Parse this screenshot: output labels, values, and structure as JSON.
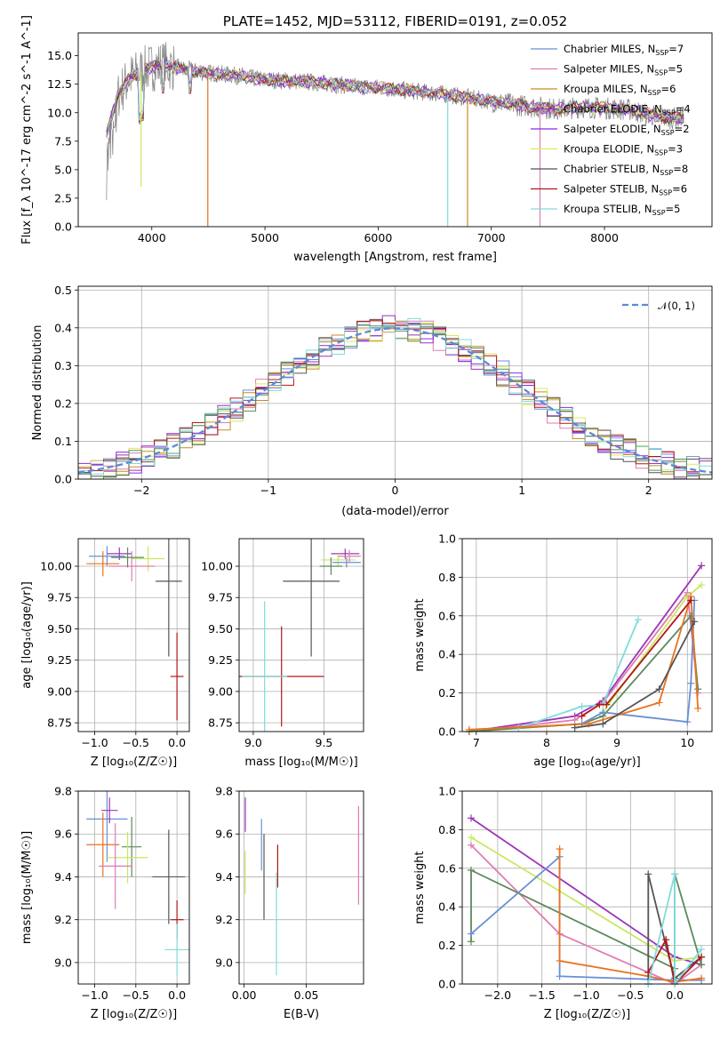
{
  "page": {
    "title": "PLATE=1452, MJD=53112, FIBERID=0191, z=0.052"
  },
  "colors": {
    "Chabrier MILES": "#6b8fd6",
    "Salpeter MILES": "#e07bb3",
    "Kroupa MILES": "#c98a2b",
    "Chabrier ELODIE": "#9b35b8",
    "Salpeter ELODIE": "#8a2be2",
    "Kroupa ELODIE": "#d9ea5a",
    "Chabrier STELIB": "#555555",
    "Salpeter STELIB": "#b01818",
    "Kroupa STELIB": "#7fdcdc",
    "data": "#808080",
    "normal": "#5b8ad6",
    "orange": "#e8731e",
    "green": "#5c8a5c",
    "lime": "#c8e860"
  },
  "chart_data": [
    {
      "id": "spectrum",
      "type": "line",
      "title": "PLATE=1452, MJD=53112, FIBERID=0191, z=0.052",
      "xlabel": "wavelength [Angstrom, rest frame]",
      "ylabel": "Flux [f_λ 10^-17 erg cm^-2 s^-1 A^-1]",
      "xlim": [
        3350,
        8950
      ],
      "ylim": [
        0,
        17
      ],
      "xticks": [
        "4000",
        "5000",
        "6000",
        "7000",
        "8000"
      ],
      "xtick_values": [
        4000,
        5000,
        6000,
        7000,
        8000
      ],
      "yticks": [
        "0.0",
        "2.5",
        "5.0",
        "7.5",
        "10.0",
        "12.5",
        "15.0"
      ],
      "ytick_values": [
        0,
        2.5,
        5,
        7.5,
        10,
        12.5,
        15
      ],
      "legend": [
        {
          "label": "Chabrier MILES, N",
          "sub": "SSP",
          "tail": "=7",
          "color": "#6b8fd6"
        },
        {
          "label": "Salpeter MILES, N",
          "sub": "SSP",
          "tail": "=5",
          "color": "#e07bb3"
        },
        {
          "label": "Kroupa MILES, N",
          "sub": "SSP",
          "tail": "=6",
          "color": "#c98a2b"
        },
        {
          "label": "Chabrier ELODIE, N",
          "sub": "SSP",
          "tail": "=4",
          "color": "#9b35b8"
        },
        {
          "label": "Salpeter ELODIE, N",
          "sub": "SSP",
          "tail": "=2",
          "color": "#8a2be2"
        },
        {
          "label": "Kroupa ELODIE, N",
          "sub": "SSP",
          "tail": "=3",
          "color": "#d9ea5a"
        },
        {
          "label": "Chabrier STELIB, N",
          "sub": "SSP",
          "tail": "=8",
          "color": "#555555"
        },
        {
          "label": "Salpeter STELIB, N",
          "sub": "SSP",
          "tail": "=6",
          "color": "#b01818"
        },
        {
          "label": "Kroupa STELIB, N",
          "sub": "SSP",
          "tail": "=5",
          "color": "#7fdcdc"
        }
      ],
      "continuum": {
        "x": [
          3600,
          3700,
          3800,
          3900,
          4000,
          4100,
          4200,
          4300,
          4400,
          4500,
          4600,
          4700,
          4800,
          4900,
          5000,
          5200,
          5400,
          5600,
          5800,
          6000,
          6200,
          6400,
          6600,
          6800,
          7000,
          7200,
          7400,
          7600,
          7800,
          8000,
          8200,
          8400,
          8600,
          8700
        ],
        "y": [
          8.2,
          11.5,
          13.0,
          13.6,
          14.0,
          14.2,
          14.0,
          13.8,
          13.6,
          13.5,
          13.4,
          13.3,
          13.2,
          13.0,
          12.9,
          12.8,
          12.7,
          12.5,
          12.3,
          12.2,
          12.0,
          11.8,
          11.6,
          11.3,
          11.0,
          10.7,
          10.5,
          10.3,
          10.5,
          10.4,
          10.3,
          9.8,
          9.5,
          9.6
        ]
      },
      "drops": [
        {
          "x": 3905,
          "y": 3.5
        },
        {
          "x": 4495,
          "y": 0.0
        },
        {
          "x": 6615,
          "y": 0.0
        },
        {
          "x": 6790,
          "y": 0.0
        },
        {
          "x": 7430,
          "y": 0.0
        }
      ]
    },
    {
      "id": "residuals",
      "type": "area",
      "xlabel": "(data-model)/error",
      "ylabel": "Normed distribution",
      "xlim": [
        -2.5,
        2.5
      ],
      "ylim": [
        0,
        0.51
      ],
      "xticks": [
        "−2",
        "−1",
        "0",
        "1",
        "2"
      ],
      "xtick_values": [
        -2,
        -1,
        0,
        1,
        2
      ],
      "yticks": [
        "0.0",
        "0.1",
        "0.2",
        "0.3",
        "0.4",
        "0.5"
      ],
      "ytick_values": [
        0,
        0.1,
        0.2,
        0.3,
        0.4,
        0.5
      ],
      "grid": true,
      "legend": [
        {
          "label": "𝒩(0, 1)",
          "color": "#5b8ad6"
        }
      ],
      "bin_width": 0.1
    },
    {
      "id": "age-vs-Z",
      "type": "scatter",
      "xlabel": "Z [log₁₀(Z/Z☉)]",
      "ylabel": "age  [log₁₀(age/yr)]",
      "xlim": [
        -1.2,
        0.15
      ],
      "ylim": [
        8.68,
        10.22
      ],
      "xticks": [
        "−1.0",
        "−0.5",
        "0.0"
      ],
      "xtick_values": [
        -1.0,
        -0.5,
        0.0
      ],
      "yticks": [
        "8.75",
        "9.00",
        "9.25",
        "9.50",
        "9.75",
        "10.00"
      ],
      "ytick_values": [
        8.75,
        9.0,
        9.25,
        9.5,
        9.75,
        10.0
      ],
      "points": [
        {
          "x": -0.85,
          "y": 10.08,
          "xerr": 0.22,
          "yerr": 0.08,
          "color": "#6b8fd6"
        },
        {
          "x": -0.9,
          "y": 10.02,
          "xerr": 0.2,
          "yerr": 0.1,
          "color": "#e8731e"
        },
        {
          "x": -0.7,
          "y": 10.1,
          "xerr": 0.15,
          "yerr": 0.05,
          "color": "#9b35b8"
        },
        {
          "x": -0.35,
          "y": 10.06,
          "xerr": 0.2,
          "yerr": 0.1,
          "color": "#c8e860"
        },
        {
          "x": -0.55,
          "y": 10.0,
          "xerr": 0.28,
          "yerr": 0.12,
          "color": "#e07bb3"
        },
        {
          "x": -0.6,
          "y": 10.07,
          "xerr": 0.2,
          "yerr": 0.08,
          "color": "#5c8a5c"
        },
        {
          "x": -0.1,
          "y": 9.88,
          "xerr": 0.16,
          "yerr": 0.6,
          "color": "#555555"
        },
        {
          "x": 0.0,
          "y": 9.12,
          "xerr": 0.08,
          "yerr": 0.35,
          "color": "#b01818"
        }
      ]
    },
    {
      "id": "age-vs-mass",
      "type": "scatter",
      "xlabel": "mass [log₁₀(M/M☉)]",
      "ylabel": "",
      "xlim": [
        8.9,
        9.78
      ],
      "ylim": [
        8.68,
        10.22
      ],
      "xticks": [
        "9.0",
        "9.5"
      ],
      "xtick_values": [
        9.0,
        9.5
      ],
      "yticks": [
        "8.75",
        "9.00",
        "9.25",
        "9.50",
        "9.75",
        "10.00"
      ],
      "ytick_values": [
        8.75,
        9.0,
        9.25,
        9.5,
        9.75,
        10.0
      ],
      "points": [
        {
          "x": 9.65,
          "y": 10.1,
          "xerr": 0.1,
          "yerr": 0.04,
          "color": "#9b35b8"
        },
        {
          "x": 9.6,
          "y": 10.05,
          "xerr": 0.12,
          "yerr": 0.05,
          "color": "#c8e860"
        },
        {
          "x": 9.66,
          "y": 10.03,
          "xerr": 0.1,
          "yerr": 0.04,
          "color": "#6b8fd6"
        },
        {
          "x": 9.68,
          "y": 10.08,
          "xerr": 0.08,
          "yerr": 0.05,
          "color": "#e07bb3"
        },
        {
          "x": 9.55,
          "y": 10.0,
          "xerr": 0.08,
          "yerr": 0.07,
          "color": "#5c8a5c"
        },
        {
          "x": 9.41,
          "y": 9.88,
          "xerr": 0.2,
          "yerr": 0.6,
          "color": "#555555"
        },
        {
          "x": 9.2,
          "y": 9.12,
          "xerr": 0.3,
          "yerr": 0.4,
          "color": "#b01818"
        },
        {
          "x": 9.08,
          "y": 9.12,
          "xerr": 0.16,
          "yerr": 0.6,
          "color": "#7fdcdc"
        }
      ]
    },
    {
      "id": "mass-weight-vs-age",
      "type": "line",
      "xlabel": "age  [log₁₀(age/yr)]",
      "ylabel": "mass weight",
      "xlim": [
        6.8,
        10.35
      ],
      "ylim": [
        0,
        1.0
      ],
      "xticks": [
        "7",
        "8",
        "9",
        "10"
      ],
      "xtick_values": [
        7,
        8,
        9,
        10
      ],
      "yticks": [
        "0.0",
        "0.2",
        "0.4",
        "0.6",
        "0.8",
        "1.0"
      ],
      "ytick_values": [
        0,
        0.2,
        0.4,
        0.6,
        0.8,
        1.0
      ],
      "grid": true,
      "series": [
        {
          "color": "#9b35b8",
          "x": [
            6.9,
            8.4,
            8.8,
            10.2
          ],
          "y": [
            0.0,
            0.08,
            0.16,
            0.86
          ]
        },
        {
          "color": "#e07bb3",
          "x": [
            6.9,
            8.4,
            8.8,
            10.0,
            10.15
          ],
          "y": [
            0.0,
            0.06,
            0.15,
            0.72,
            0.2
          ]
        },
        {
          "color": "#c8e860",
          "x": [
            6.9,
            8.5,
            8.8,
            10.0,
            10.2
          ],
          "y": [
            0.0,
            0.04,
            0.1,
            0.7,
            0.76
          ]
        },
        {
          "color": "#5c8a5c",
          "x": [
            6.9,
            8.5,
            8.8,
            10.05,
            10.15
          ],
          "y": [
            0.0,
            0.04,
            0.08,
            0.6,
            0.22
          ]
        },
        {
          "color": "#7fdcdc",
          "x": [
            7.6,
            8.5,
            8.8,
            9.3
          ],
          "y": [
            0.02,
            0.13,
            0.14,
            0.58
          ]
        },
        {
          "color": "#6b8fd6",
          "x": [
            8.5,
            8.8,
            10.0,
            10.05,
            10.1
          ],
          "y": [
            0.04,
            0.1,
            0.05,
            0.25,
            0.68
          ]
        },
        {
          "color": "#e8731e",
          "x": [
            6.9,
            8.6,
            9.6,
            10.05,
            10.15
          ],
          "y": [
            0.01,
            0.04,
            0.15,
            0.7,
            0.12
          ]
        },
        {
          "color": "#555555",
          "x": [
            8.4,
            8.8,
            9.6,
            10.1
          ],
          "y": [
            0.02,
            0.04,
            0.22,
            0.57
          ]
        },
        {
          "color": "#b01818",
          "x": [
            8.5,
            8.75,
            8.85,
            10.05
          ],
          "y": [
            0.08,
            0.14,
            0.14,
            0.68
          ]
        }
      ]
    },
    {
      "id": "mass-vs-Z",
      "type": "scatter",
      "xlabel": "Z [log₁₀(Z/Z☉)]",
      "ylabel": "mass [log₁₀(M/M☉)]",
      "xlim": [
        -1.2,
        0.15
      ],
      "ylim": [
        8.9,
        9.8
      ],
      "xticks": [
        "−1.0",
        "−0.5",
        "0.0"
      ],
      "xtick_values": [
        -1.0,
        -0.5,
        0.0
      ],
      "yticks": [
        "9.0",
        "9.2",
        "9.4",
        "9.6",
        "9.8"
      ],
      "ytick_values": [
        9.0,
        9.2,
        9.4,
        9.6,
        9.8
      ],
      "points": [
        {
          "x": -0.85,
          "y": 9.67,
          "xerr": 0.25,
          "yerr": 0.2,
          "color": "#6b8fd6"
        },
        {
          "x": -0.82,
          "y": 9.71,
          "xerr": 0.1,
          "yerr": 0.06,
          "color": "#9b35b8"
        },
        {
          "x": -0.9,
          "y": 9.55,
          "xerr": 0.2,
          "yerr": 0.15,
          "color": "#e8731e"
        },
        {
          "x": -0.55,
          "y": 9.54,
          "xerr": 0.12,
          "yerr": 0.14,
          "color": "#5c8a5c"
        },
        {
          "x": -0.6,
          "y": 9.49,
          "xerr": 0.25,
          "yerr": 0.12,
          "color": "#c8e860"
        },
        {
          "x": -0.75,
          "y": 9.45,
          "xerr": 0.2,
          "yerr": 0.2,
          "color": "#e07bb3"
        },
        {
          "x": -0.1,
          "y": 9.4,
          "xerr": 0.2,
          "yerr": 0.22,
          "color": "#555555"
        },
        {
          "x": 0.0,
          "y": 9.2,
          "xerr": 0.08,
          "yerr": 0.09,
          "color": "#b01818"
        },
        {
          "x": 0.0,
          "y": 9.06,
          "xerr": 0.15,
          "yerr": 0.12,
          "color": "#7fdcdc"
        }
      ]
    },
    {
      "id": "mass-vs-ebv",
      "type": "scatter",
      "xlabel": "E(B-V)",
      "ylabel": "",
      "xlim": [
        -0.004,
        0.096
      ],
      "ylim": [
        8.9,
        9.8
      ],
      "xticks": [
        "0.00",
        "0.05"
      ],
      "xtick_values": [
        0.0,
        0.05
      ],
      "yticks": [
        "9.0",
        "9.2",
        "9.4",
        "9.6",
        "9.8"
      ],
      "ytick_values": [
        9.0,
        9.2,
        9.4,
        9.6,
        9.8
      ],
      "points": [
        {
          "x": 0.001,
          "y": 9.69,
          "xerr": 0,
          "yerr": 0.08,
          "color": "#9b35b8"
        },
        {
          "x": 0.001,
          "y": 9.42,
          "xerr": 0,
          "yerr": 0.1,
          "color": "#c8e860"
        },
        {
          "x": 0.014,
          "y": 9.55,
          "xerr": 0,
          "yerr": 0.12,
          "color": "#6b8fd6"
        },
        {
          "x": 0.016,
          "y": 9.4,
          "xerr": 0,
          "yerr": 0.2,
          "color": "#555555"
        },
        {
          "x": 0.027,
          "y": 9.45,
          "xerr": 0,
          "yerr": 0.1,
          "color": "#b01818"
        },
        {
          "x": 0.026,
          "y": 9.18,
          "xerr": 0,
          "yerr": 0.24,
          "color": "#7fdcdc"
        },
        {
          "x": 0.092,
          "y": 9.5,
          "xerr": 0,
          "yerr": 0.23,
          "color": "#e07bb3"
        }
      ]
    },
    {
      "id": "mass-weight-vs-Z",
      "type": "line",
      "xlabel": "Z [log₁₀(Z/Z☉)]",
      "ylabel": "mass weight",
      "xlim": [
        -2.4,
        0.42
      ],
      "ylim": [
        0,
        1.0
      ],
      "xticks": [
        "−2.0",
        "−1.5",
        "−1.0",
        "−0.5",
        "0.0"
      ],
      "xtick_values": [
        -2.0,
        -1.5,
        -1.0,
        -0.5,
        0.0
      ],
      "yticks": [
        "0.0",
        "0.2",
        "0.4",
        "0.6",
        "0.8",
        "1.0"
      ],
      "ytick_values": [
        0,
        0.2,
        0.4,
        0.6,
        0.8,
        1.0
      ],
      "grid": true,
      "series": [
        {
          "color": "#9b35b8",
          "x": [
            -2.3,
            0.0,
            0.3
          ],
          "y": [
            0.86,
            0.14,
            0.1
          ]
        },
        {
          "color": "#c8e860",
          "x": [
            -2.3,
            0.0,
            0.3
          ],
          "y": [
            0.76,
            0.12,
            0.14
          ]
        },
        {
          "color": "#e07bb3",
          "x": [
            -2.3,
            -1.3,
            0.0,
            0.3
          ],
          "y": [
            0.72,
            0.26,
            0.0,
            0.1
          ]
        },
        {
          "color": "#5c8a5c",
          "x": [
            -2.3,
            -2.3,
            0.0,
            0.0,
            0.3
          ],
          "y": [
            0.22,
            0.59,
            0.08,
            0.57,
            0.1
          ]
        },
        {
          "color": "#6b8fd6",
          "x": [
            -2.3,
            -1.3,
            -1.3,
            0.0,
            0.3
          ],
          "y": [
            0.26,
            0.66,
            0.04,
            0.02,
            0.02
          ]
        },
        {
          "color": "#e8731e",
          "x": [
            -1.3,
            -1.3,
            -0.3,
            0.0,
            0.3
          ],
          "y": [
            0.7,
            0.12,
            0.04,
            0.01,
            0.03
          ]
        },
        {
          "color": "#555555",
          "x": [
            -0.3,
            -0.3,
            -0.1,
            0.0,
            0.3
          ],
          "y": [
            0.0,
            0.57,
            0.2,
            0.03,
            0.14
          ]
        },
        {
          "color": "#b01818",
          "x": [
            -0.3,
            -0.1,
            0.0,
            0.3
          ],
          "y": [
            0.06,
            0.23,
            0.0,
            0.14
          ]
        },
        {
          "color": "#7fdcdc",
          "x": [
            -0.3,
            0.0,
            0.0,
            0.3
          ],
          "y": [
            0.0,
            0.57,
            0.0,
            0.18
          ]
        }
      ]
    }
  ]
}
